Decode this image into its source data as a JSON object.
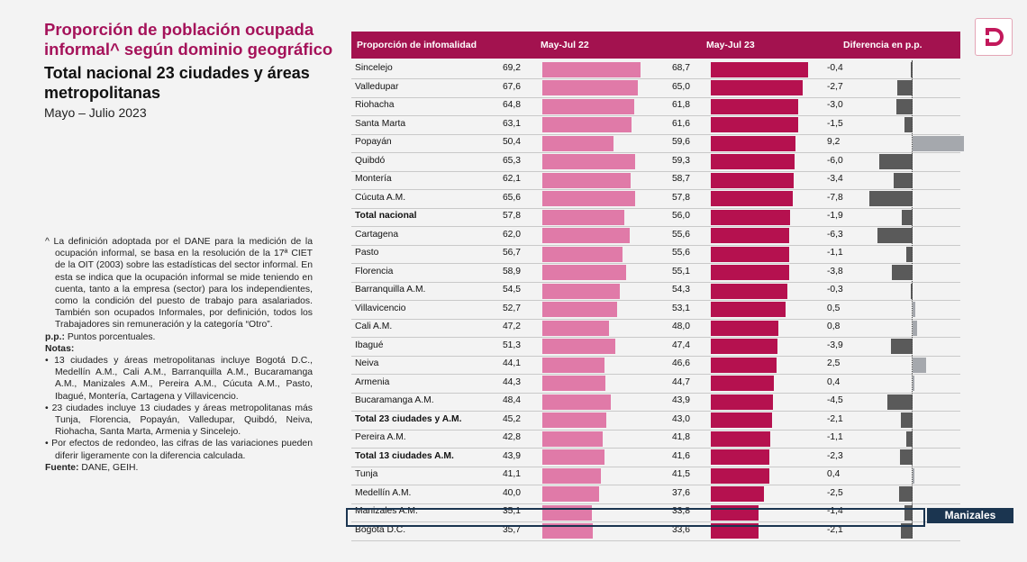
{
  "header": {
    "title": "Proporción de población ocupada informal^ según dominio geográfico",
    "subtitle": "Total nacional 23 ciudades y áreas metropolitanas",
    "period": "Mayo – Julio 2023"
  },
  "notes": {
    "definition": "^ La definición adoptada por el DANE para la medición de la ocupación informal, se basa en la resolución de la 17ª CIET de la OIT (2003) sobre las estadísticas del sector informal. En esta se indica que la ocupación informal se mide teniendo en cuenta, tanto a la empresa (sector) para los independientes, como la condición del puesto de trabajo para asalariados. También son ocupados Informales, por definición, todos los Trabajadores sin remuneración y la categoría “Otro”.",
    "pp_label": "p.p.:",
    "pp_text": " Puntos porcentuales.",
    "notas_label": "Notas:",
    "bullet1": "• 13 ciudades y áreas metropolitanas incluye Bogotá D.C., Medellín A.M., Cali A.M., Barranquilla A.M., Bucaramanga A.M., Manizales A.M., Pereira A.M., Cúcuta A.M., Pasto, Ibagué, Montería, Cartagena y Villavicencio.",
    "bullet2": "• 23 ciudades incluye 13 ciudades y áreas metropolitanas más Tunja, Florencia, Popayán, Valledupar, Quibdó, Neiva, Riohacha, Santa Marta, Armenia y Sincelejo.",
    "bullet3": "• Por efectos de redondeo, las cifras de las variaciones pueden diferir ligeramente con la diferencia calculada.",
    "source_label": "Fuente:",
    "source_text": " DANE, GEIH."
  },
  "chart_data": {
    "type": "bar",
    "columns": [
      "Proporción de infomalidad",
      "May-Jul 22",
      "May-Jul 23",
      "Diferencia en p.p."
    ],
    "colors": {
      "may_jul_22": "#e07aa8",
      "may_jul_23": "#b5114f",
      "header": "#a3124f",
      "diff_negative": "#5a5a5a",
      "diff_positive": "#a5a8ad"
    },
    "categories": [
      "Sincelejo",
      "Valledupar",
      "Riohacha",
      "Santa Marta",
      "Popayán",
      "Quibdó",
      "Montería",
      "Cúcuta A.M.",
      "Total nacional",
      "Cartagena",
      "Pasto",
      "Florencia",
      "Barranquilla A.M.",
      "Villavicencio",
      "Cali A.M.",
      "Ibagué",
      "Neiva",
      "Armenia",
      "Bucaramanga A.M.",
      "Total 23 ciudades y A.M.",
      "Pereira A.M.",
      "Total 13 ciudades A.M.",
      "Tunja",
      "Medellín A.M.",
      "Manizales A.M.",
      "Bogotá D.C."
    ],
    "bold_rows": [
      "Total nacional",
      "Total 23 ciudades y A.M.",
      "Total 13 ciudades A.M."
    ],
    "series": [
      {
        "name": "May-Jul 22",
        "values": [
          69.2,
          67.6,
          64.8,
          63.1,
          50.4,
          65.3,
          62.1,
          65.6,
          57.8,
          62.0,
          56.7,
          58.9,
          54.5,
          52.7,
          47.2,
          51.3,
          44.1,
          44.3,
          48.4,
          45.2,
          42.8,
          43.9,
          41.1,
          40.0,
          35.1,
          35.7
        ]
      },
      {
        "name": "May-Jul 23",
        "values": [
          68.7,
          65.0,
          61.8,
          61.6,
          59.6,
          59.3,
          58.7,
          57.8,
          56.0,
          55.6,
          55.6,
          55.1,
          54.3,
          53.1,
          48.0,
          47.4,
          46.6,
          44.7,
          43.9,
          43.0,
          41.8,
          41.6,
          41.5,
          37.6,
          33.8,
          33.6
        ]
      },
      {
        "name": "Diferencia en p.p.",
        "values": [
          -0.4,
          -2.7,
          -3.0,
          -1.5,
          9.2,
          -6.0,
          -3.4,
          -7.8,
          -1.9,
          -6.3,
          -1.1,
          -3.8,
          -0.3,
          0.5,
          0.8,
          -3.9,
          2.5,
          0.4,
          -4.5,
          -2.1,
          -1.1,
          -2.3,
          0.4,
          -2.5,
          -1.4,
          -2.1
        ]
      }
    ],
    "highlight": {
      "row": "Manizales A.M.",
      "label": "Manizales"
    }
  }
}
